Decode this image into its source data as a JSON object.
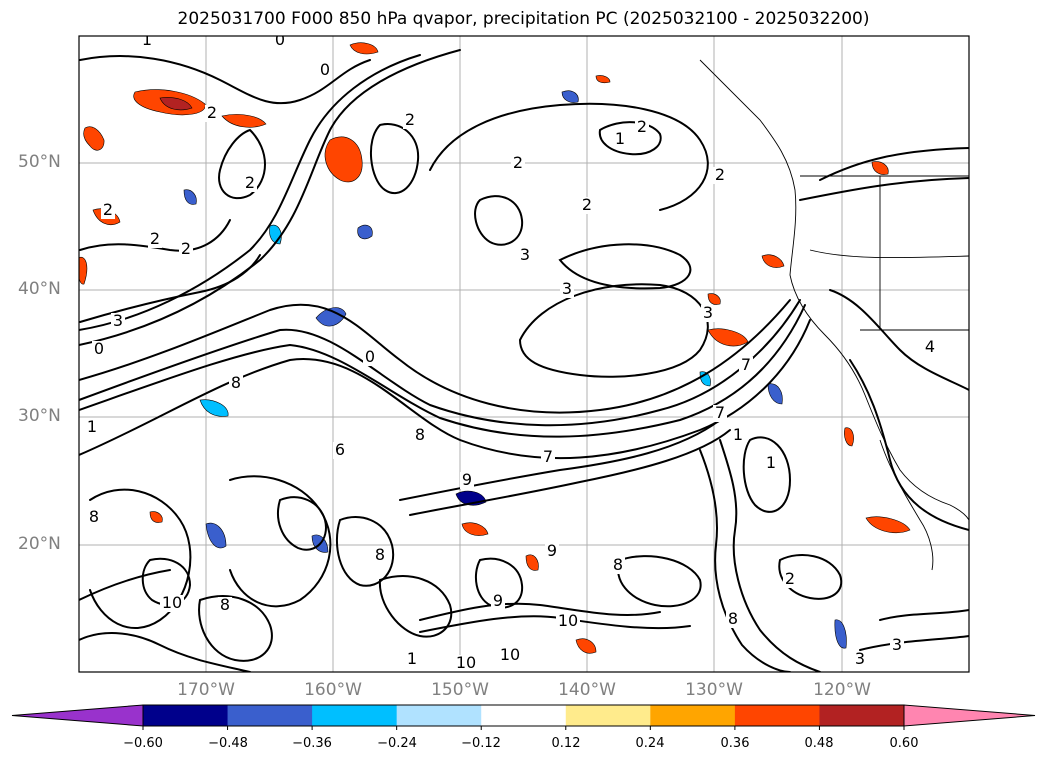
{
  "title": "2025031700 F000 850 hPa qvapor, precipitation PC (2025032100 - 2025032200)",
  "lat_labels": [
    "50°N",
    "40°N",
    "30°N",
    "20°N"
  ],
  "lon_labels": [
    "170°W",
    "160°W",
    "150°W",
    "140°W",
    "130°W",
    "120°W"
  ],
  "colorbar": {
    "ticks": [
      "−0.60",
      "−0.48",
      "−0.36",
      "−0.24",
      "−0.12",
      "0.12",
      "0.24",
      "0.36",
      "0.48",
      "0.60"
    ],
    "colors": {
      "under": "#9932cc",
      "bins": [
        "#00008b",
        "#3a5fcd",
        "#00bfff",
        "#b0e2ff",
        "#ffffff",
        "#ffeb8c",
        "#ffa500",
        "#ff4500",
        "#b22222"
      ],
      "over": "#ff85b0"
    }
  },
  "contour_labels": [
    {
      "t": "1"
    },
    {
      "t": "0"
    },
    {
      "t": "0"
    },
    {
      "t": "2"
    },
    {
      "t": "2"
    },
    {
      "t": "2"
    },
    {
      "t": "2"
    },
    {
      "t": "2"
    },
    {
      "t": "2"
    },
    {
      "t": "2"
    },
    {
      "t": "2"
    },
    {
      "t": "1"
    },
    {
      "t": "2"
    },
    {
      "t": "2"
    },
    {
      "t": "3"
    },
    {
      "t": "3"
    },
    {
      "t": "3"
    },
    {
      "t": "0"
    },
    {
      "t": "0"
    },
    {
      "t": "8"
    },
    {
      "t": "3"
    },
    {
      "t": "8"
    },
    {
      "t": "6"
    },
    {
      "t": "9"
    },
    {
      "t": "7"
    },
    {
      "t": "8"
    },
    {
      "t": "8"
    },
    {
      "t": "7"
    },
    {
      "t": "7"
    },
    {
      "t": "1"
    },
    {
      "t": "1"
    },
    {
      "t": "3"
    },
    {
      "t": "1"
    },
    {
      "t": "10"
    },
    {
      "t": "8"
    },
    {
      "t": "10"
    },
    {
      "t": "10"
    },
    {
      "t": "10"
    },
    {
      "t": "9"
    },
    {
      "t": "8"
    },
    {
      "t": "8"
    },
    {
      "t": "2"
    },
    {
      "t": "3"
    },
    {
      "t": "4"
    },
    {
      "t": "9"
    },
    {
      "t": "1"
    }
  ]
}
